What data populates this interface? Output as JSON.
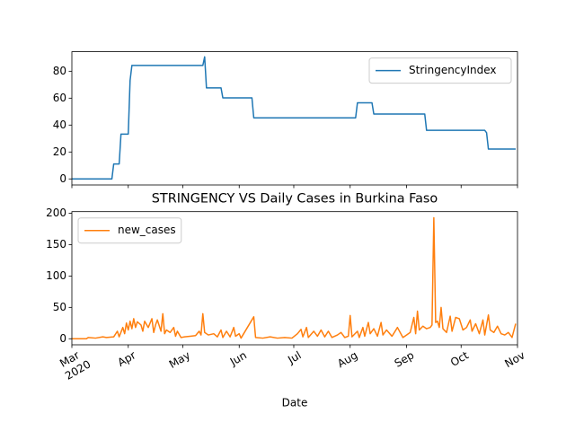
{
  "chart_data": [
    {
      "type": "line",
      "x": [
        "2020-03-01",
        "2020-03-23",
        "2020-03-24",
        "2020-03-27",
        "2020-03-28",
        "2020-04-01",
        "2020-04-02",
        "2020-04-03",
        "2020-05-12",
        "2020-05-13",
        "2020-05-14",
        "2020-05-22",
        "2020-05-23",
        "2020-06-08",
        "2020-06-09",
        "2020-08-04",
        "2020-08-05",
        "2020-08-13",
        "2020-08-14",
        "2020-09-11",
        "2020-09-12",
        "2020-10-14",
        "2020-10-15",
        "2020-10-16",
        "2020-10-31"
      ],
      "series": [
        {
          "name": "StringencyIndex",
          "color": "#1f77b4",
          "values": [
            0,
            0,
            11.1,
            11.1,
            33.3,
            33.3,
            73.1,
            84.3,
            84.3,
            90.7,
            67.6,
            67.6,
            60.2,
            60.2,
            45.4,
            45.4,
            56.5,
            56.5,
            48.2,
            48.2,
            36.1,
            36.1,
            34.3,
            22.2,
            22.2
          ]
        }
      ],
      "xlim": [
        "2020-03-01",
        "2020-11-01"
      ],
      "xticks": [
        "2020-03-01",
        "2020-04-01",
        "2020-05-01",
        "2020-06-01",
        "2020-07-01",
        "2020-08-01",
        "2020-09-01",
        "2020-10-01",
        "2020-11-01"
      ],
      "ylim": [
        -4.5,
        94.5
      ],
      "yticks": [
        0,
        20,
        40,
        60,
        80
      ],
      "legend": "upper right"
    },
    {
      "type": "line",
      "title": "STRINGENCY VS Daily Cases in Burkina Faso",
      "xlabel": "Date",
      "x": [
        "2020-03-01",
        "2020-03-09",
        "2020-03-10",
        "2020-03-14",
        "2020-03-18",
        "2020-03-20",
        "2020-03-24",
        "2020-03-26",
        "2020-03-27",
        "2020-03-29",
        "2020-03-30",
        "2020-03-31",
        "2020-04-01",
        "2020-04-02",
        "2020-04-03",
        "2020-04-04",
        "2020-04-05",
        "2020-04-06",
        "2020-04-08",
        "2020-04-09",
        "2020-04-10",
        "2020-04-12",
        "2020-04-14",
        "2020-04-15",
        "2020-04-16",
        "2020-04-17",
        "2020-04-19",
        "2020-04-20",
        "2020-04-21",
        "2020-04-22",
        "2020-04-24",
        "2020-04-26",
        "2020-04-27",
        "2020-04-28",
        "2020-04-30",
        "2020-05-02",
        "2020-05-05",
        "2020-05-08",
        "2020-05-10",
        "2020-05-11",
        "2020-05-12",
        "2020-05-13",
        "2020-05-15",
        "2020-05-18",
        "2020-05-20",
        "2020-05-22",
        "2020-05-23",
        "2020-05-25",
        "2020-05-27",
        "2020-05-29",
        "2020-05-30",
        "2020-06-01",
        "2020-06-02",
        "2020-06-09",
        "2020-06-10",
        "2020-06-14",
        "2020-06-18",
        "2020-06-22",
        "2020-06-26",
        "2020-06-30",
        "2020-07-03",
        "2020-07-05",
        "2020-07-06",
        "2020-07-08",
        "2020-07-09",
        "2020-07-12",
        "2020-07-14",
        "2020-07-16",
        "2020-07-18",
        "2020-07-20",
        "2020-07-22",
        "2020-07-25",
        "2020-07-27",
        "2020-07-29",
        "2020-07-31",
        "2020-08-01",
        "2020-08-02",
        "2020-08-05",
        "2020-08-06",
        "2020-08-08",
        "2020-08-09",
        "2020-08-11",
        "2020-08-12",
        "2020-08-14",
        "2020-08-16",
        "2020-08-18",
        "2020-08-19",
        "2020-08-21",
        "2020-08-24",
        "2020-08-27",
        "2020-08-30",
        "2020-09-01",
        "2020-09-03",
        "2020-09-05",
        "2020-09-06",
        "2020-09-07",
        "2020-09-08",
        "2020-09-10",
        "2020-09-12",
        "2020-09-14",
        "2020-09-15",
        "2020-09-16",
        "2020-09-17",
        "2020-09-18",
        "2020-09-19",
        "2020-09-20",
        "2020-09-21",
        "2020-09-23",
        "2020-09-25",
        "2020-09-26",
        "2020-09-28",
        "2020-09-30",
        "2020-10-02",
        "2020-10-04",
        "2020-10-06",
        "2020-10-07",
        "2020-10-09",
        "2020-10-11",
        "2020-10-13",
        "2020-10-14",
        "2020-10-16",
        "2020-10-17",
        "2020-10-19",
        "2020-10-21",
        "2020-10-23",
        "2020-10-25",
        "2020-10-27",
        "2020-10-29",
        "2020-10-31"
      ],
      "series": [
        {
          "name": "new_cases",
          "color": "#ff7f0e",
          "values": [
            0,
            0,
            2,
            1,
            3,
            2,
            3,
            12,
            3,
            18,
            8,
            25,
            14,
            28,
            16,
            32,
            18,
            27,
            22,
            12,
            28,
            18,
            32,
            10,
            22,
            30,
            12,
            40,
            8,
            14,
            10,
            18,
            4,
            12,
            2,
            3,
            4,
            5,
            12,
            6,
            40,
            10,
            6,
            8,
            3,
            14,
            2,
            12,
            3,
            18,
            4,
            8,
            1,
            35,
            2,
            1,
            3,
            1,
            2,
            1,
            8,
            15,
            3,
            18,
            2,
            12,
            4,
            14,
            3,
            12,
            2,
            6,
            10,
            2,
            4,
            37,
            3,
            12,
            2,
            18,
            4,
            26,
            8,
            16,
            4,
            26,
            6,
            14,
            4,
            18,
            2,
            6,
            10,
            34,
            8,
            44,
            14,
            20,
            16,
            18,
            22,
            193,
            26,
            28,
            18,
            50,
            16,
            10,
            36,
            12,
            34,
            32,
            14,
            18,
            30,
            12,
            24,
            8,
            30,
            6,
            38,
            14,
            10,
            20,
            8,
            6,
            10,
            2,
            24
          ]
        }
      ],
      "xlim": [
        "2020-03-01",
        "2020-11-01"
      ],
      "xticks": [
        {
          "value": "2020-03-01",
          "label": "Mar"
        },
        {
          "value": "2020-04-01",
          "label": "Apr"
        },
        {
          "value": "2020-05-01",
          "label": "May"
        },
        {
          "value": "2020-06-01",
          "label": "Jun"
        },
        {
          "value": "2020-07-01",
          "label": "Jul"
        },
        {
          "value": "2020-08-01",
          "label": "Aug"
        },
        {
          "value": "2020-09-01",
          "label": "Sep"
        },
        {
          "value": "2020-10-01",
          "label": "Oct"
        },
        {
          "value": "2020-11-01",
          "label": "Nov"
        }
      ],
      "x_year_label": "2020",
      "ylim": [
        -9.65,
        202.65
      ],
      "yticks": [
        0,
        50,
        100,
        150,
        200
      ],
      "legend": "upper left"
    }
  ]
}
